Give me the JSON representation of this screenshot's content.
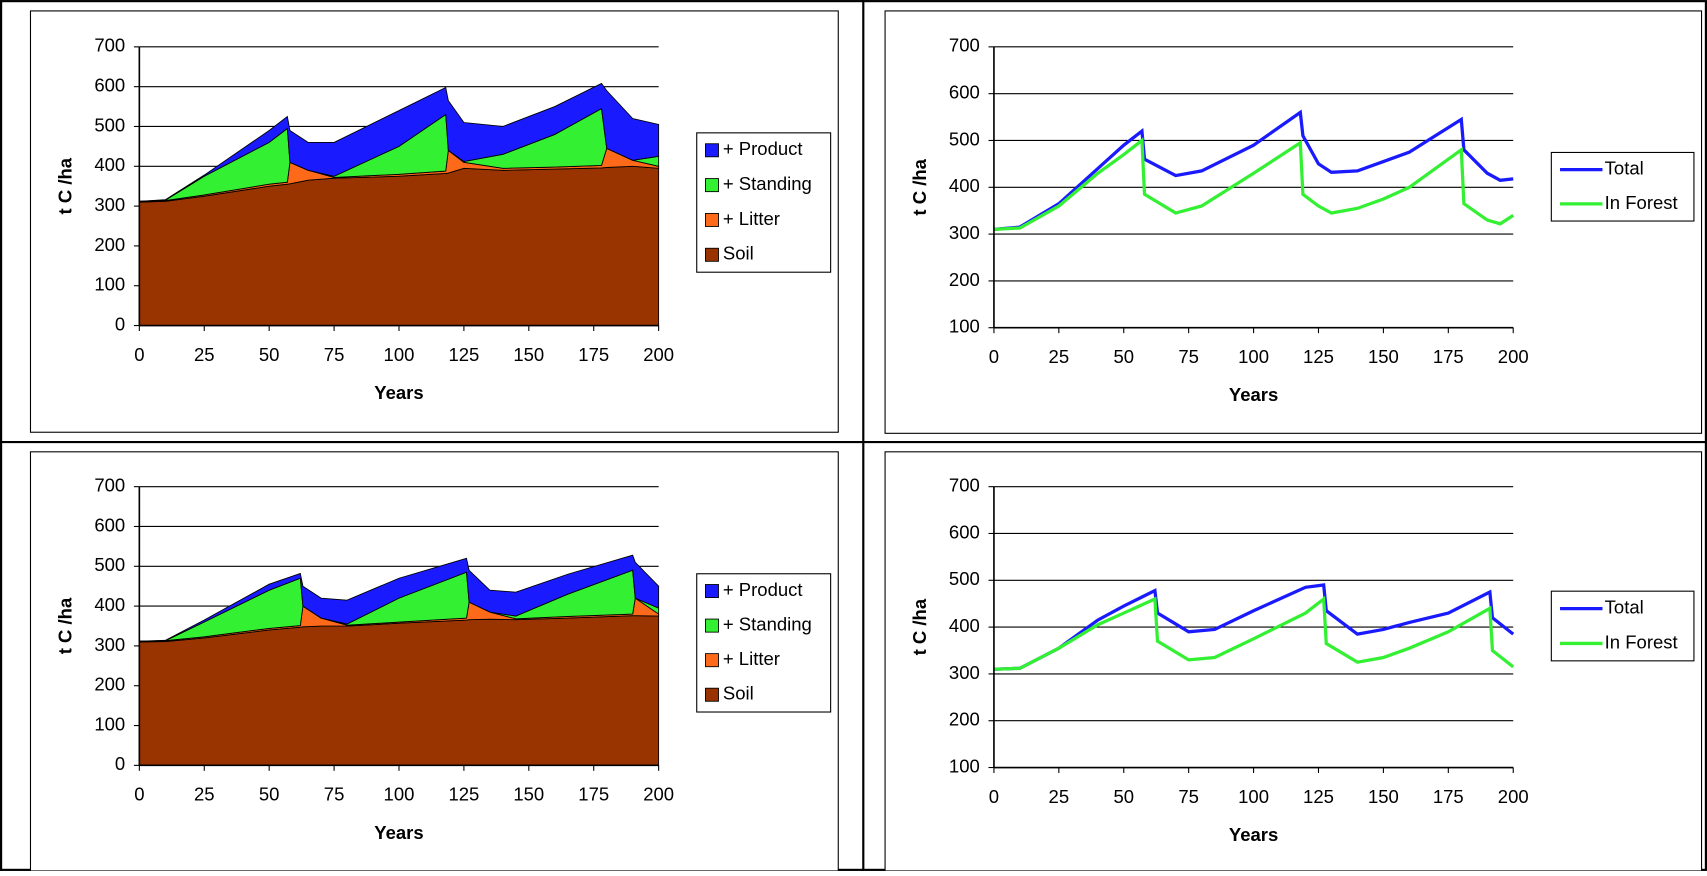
{
  "chart_data": [
    {
      "type": "area",
      "stacked": true,
      "grid": true,
      "legend": "right",
      "xlabel": "Years",
      "ylabel": "t C /ha",
      "xlim": [
        0,
        200
      ],
      "xticks": [
        0,
        25,
        50,
        75,
        100,
        125,
        150,
        175,
        200
      ],
      "ylim": [
        0,
        700
      ],
      "yticks": [
        0,
        100,
        200,
        300,
        400,
        500,
        600,
        700
      ],
      "x": [
        0,
        10,
        25,
        50,
        57,
        58,
        65,
        75,
        100,
        118,
        119,
        125,
        140,
        160,
        178,
        180,
        190,
        200
      ],
      "series": [
        {
          "name": "Soil",
          "color": "#993300",
          "values": [
            310,
            312,
            325,
            350,
            355,
            356,
            365,
            370,
            375,
            382,
            383,
            395,
            390,
            393,
            396,
            397,
            400,
            395
          ]
        },
        {
          "name": "+ Litter",
          "color": "#ff6a1a",
          "values": [
            2,
            2,
            3,
            5,
            5,
            54,
            25,
            2,
            5,
            6,
            57,
            15,
            5,
            5,
            6,
            48,
            15,
            5
          ]
        },
        {
          "name": "+ Standing",
          "color": "#33f033",
          "values": [
            0,
            1,
            47,
            105,
            135,
            0,
            0,
            3,
            70,
            142,
            0,
            2,
            35,
            82,
            143,
            0,
            0,
            25
          ]
        },
        {
          "name": "+ Product",
          "color": "#1a1aff",
          "values": [
            0,
            1,
            3,
            30,
            30,
            80,
            70,
            85,
            90,
            68,
            125,
            98,
            70,
            70,
            63,
            145,
            105,
            80
          ]
        }
      ]
    },
    {
      "type": "line",
      "grid": true,
      "legend": "right",
      "xlabel": "Years",
      "ylabel": "t C /ha",
      "xlim": [
        0,
        200
      ],
      "xticks": [
        0,
        25,
        50,
        75,
        100,
        125,
        150,
        175,
        200
      ],
      "ylim": [
        100,
        700
      ],
      "yticks": [
        100,
        200,
        300,
        400,
        500,
        600,
        700
      ],
      "x": [
        0,
        10,
        25,
        40,
        50,
        57,
        58,
        70,
        80,
        100,
        118,
        119,
        125,
        130,
        140,
        150,
        160,
        170,
        180,
        181,
        190,
        195,
        200
      ],
      "series": [
        {
          "name": "Total",
          "color": "#1a1aff",
          "values": [
            310,
            315,
            365,
            440,
            490,
            520,
            460,
            425,
            435,
            490,
            560,
            510,
            450,
            432,
            435,
            455,
            475,
            510,
            545,
            480,
            430,
            415,
            418
          ]
        },
        {
          "name": "In Forest",
          "color": "#33f033",
          "values": [
            310,
            313,
            360,
            430,
            470,
            500,
            385,
            345,
            360,
            430,
            495,
            385,
            360,
            345,
            355,
            375,
            400,
            440,
            480,
            365,
            330,
            322,
            340
          ]
        }
      ]
    },
    {
      "type": "area",
      "stacked": true,
      "grid": true,
      "legend": "right",
      "xlabel": "Years",
      "ylabel": "t C /ha",
      "xlim": [
        0,
        200
      ],
      "xticks": [
        0,
        25,
        50,
        75,
        100,
        125,
        150,
        175,
        200
      ],
      "ylim": [
        0,
        700
      ],
      "yticks": [
        0,
        100,
        200,
        300,
        400,
        500,
        600,
        700
      ],
      "x": [
        0,
        10,
        25,
        50,
        62,
        63,
        70,
        80,
        100,
        126,
        127,
        135,
        145,
        165,
        190,
        191,
        200
      ],
      "series": [
        {
          "name": "Soil",
          "color": "#993300",
          "values": [
            310,
            311,
            320,
            340,
            347,
            348,
            350,
            350,
            357,
            365,
            366,
            367,
            366,
            370,
            376,
            376,
            375
          ]
        },
        {
          "name": "+ Litter",
          "color": "#ff6a1a",
          "values": [
            2,
            2,
            3,
            4,
            4,
            52,
            20,
            2,
            3,
            5,
            44,
            18,
            2,
            4,
            4,
            44,
            5
          ]
        },
        {
          "name": "+ Standing",
          "color": "#33f033",
          "values": [
            0,
            0,
            37,
            96,
            119,
            0,
            0,
            3,
            60,
            115,
            0,
            0,
            7,
            56,
            110,
            0,
            15
          ]
        },
        {
          "name": "+ Product",
          "color": "#1a1aff",
          "values": [
            0,
            1,
            5,
            15,
            12,
            50,
            50,
            60,
            50,
            35,
            80,
            55,
            60,
            50,
            38,
            90,
            55
          ]
        }
      ]
    },
    {
      "type": "line",
      "grid": true,
      "legend": "right",
      "xlabel": "Years",
      "ylabel": "t C /ha",
      "xlim": [
        0,
        200
      ],
      "xticks": [
        0,
        25,
        50,
        75,
        100,
        125,
        150,
        175,
        200
      ],
      "ylim": [
        100,
        700
      ],
      "yticks": [
        100,
        200,
        300,
        400,
        500,
        600,
        700
      ],
      "x": [
        0,
        10,
        25,
        40,
        50,
        62,
        63,
        75,
        85,
        100,
        120,
        127,
        128,
        140,
        150,
        160,
        175,
        191,
        192,
        200
      ],
      "series": [
        {
          "name": "Total",
          "color": "#1a1aff",
          "values": [
            310,
            312,
            355,
            415,
            445,
            478,
            430,
            390,
            395,
            435,
            485,
            490,
            435,
            385,
            395,
            410,
            430,
            475,
            420,
            385
          ]
        },
        {
          "name": "In Forest",
          "color": "#33f033",
          "values": [
            310,
            312,
            355,
            405,
            430,
            460,
            370,
            330,
            335,
            375,
            430,
            460,
            365,
            325,
            335,
            355,
            390,
            440,
            350,
            315
          ]
        }
      ]
    }
  ]
}
